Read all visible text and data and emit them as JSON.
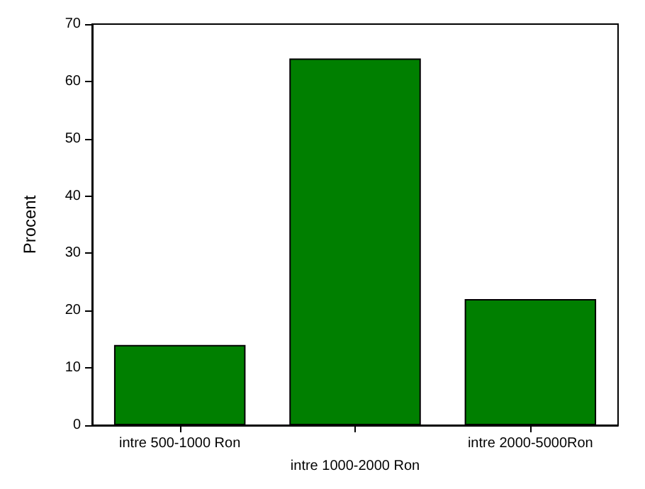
{
  "chart_data": {
    "type": "bar",
    "ylabel": "Procent",
    "categories": [
      "intre 500-1000 Ron",
      "intre 1000-2000 Ron",
      "intre 2000-5000Ron"
    ],
    "values": [
      14,
      64,
      22
    ],
    "color": "#007f00",
    "ylim": [
      0,
      70
    ],
    "yticks": [
      0,
      10,
      20,
      30,
      40,
      50,
      60,
      70
    ],
    "grid": false
  }
}
